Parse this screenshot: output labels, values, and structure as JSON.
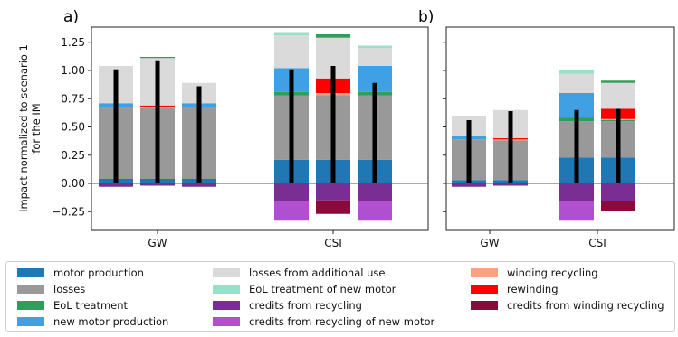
{
  "chart_data": [
    {
      "panel_label": "a)",
      "type": "bar",
      "stacked": true,
      "ylabel": "Impact normalized to scenario 1\nfor the IM",
      "yticks": [
        -0.25,
        0.0,
        0.25,
        0.5,
        0.75,
        1.0,
        1.25
      ],
      "ytick_labels": [
        "−0.25",
        "0.00",
        "0.25",
        "0.50",
        "0.75",
        "1.00",
        "1.25"
      ],
      "ylim": [
        -0.37,
        1.38
      ],
      "categories": [
        "GW",
        "CSI"
      ],
      "groups": [
        {
          "category": "GW",
          "bars": [
            {
              "segments": [
                [
                  "motor_production",
                  0.04
                ],
                [
                  "losses",
                  0.64
                ],
                [
                  "new_motor_production",
                  0.03
                ],
                [
                  "losses_additional_use",
                  0.33
                ]
              ],
              "negative": [
                [
                  "credits_recycling",
                  -0.03
                ]
              ],
              "line": [
                0.0,
                1.01
              ]
            },
            {
              "segments": [
                [
                  "motor_production",
                  0.04
                ],
                [
                  "losses",
                  0.63
                ],
                [
                  "winding_recycling",
                  0.01
                ],
                [
                  "rewinding",
                  0.01
                ],
                [
                  "losses_additional_use",
                  0.42
                ],
                [
                  "eol_treatment",
                  0.01
                ]
              ],
              "negative": [
                [
                  "credits_recycling",
                  -0.02
                ]
              ],
              "line": [
                0.0,
                1.09
              ]
            },
            {
              "segments": [
                [
                  "motor_production",
                  0.04
                ],
                [
                  "losses",
                  0.64
                ],
                [
                  "new_motor_production",
                  0.03
                ],
                [
                  "losses_additional_use",
                  0.18
                ]
              ],
              "negative": [
                [
                  "credits_recycling",
                  -0.03
                ]
              ],
              "line": [
                0.0,
                0.86
              ]
            }
          ]
        },
        {
          "category": "CSI",
          "bars": [
            {
              "segments": [
                [
                  "motor_production",
                  0.21
                ],
                [
                  "losses",
                  0.57
                ],
                [
                  "eol_treatment",
                  0.03
                ],
                [
                  "new_motor_production",
                  0.21
                ],
                [
                  "losses_additional_use",
                  0.29
                ],
                [
                  "eol_treatment_new_motor",
                  0.03
                ]
              ],
              "negative": [
                [
                  "credits_recycling",
                  -0.16
                ],
                [
                  "credits_recycling_new_motor",
                  -0.17
                ]
              ],
              "line": [
                0.0,
                1.01
              ]
            },
            {
              "segments": [
                [
                  "motor_production",
                  0.21
                ],
                [
                  "losses",
                  0.57
                ],
                [
                  "winding_recycling",
                  0.02
                ],
                [
                  "rewinding",
                  0.13
                ],
                [
                  "losses_additional_use",
                  0.36
                ],
                [
                  "eol_treatment",
                  0.03
                ]
              ],
              "negative": [
                [
                  "credits_recycling",
                  -0.15
                ],
                [
                  "credits_winding_recycling",
                  -0.12
                ]
              ],
              "line": [
                0.0,
                1.04
              ]
            },
            {
              "segments": [
                [
                  "motor_production",
                  0.21
                ],
                [
                  "losses",
                  0.57
                ],
                [
                  "eol_treatment",
                  0.03
                ],
                [
                  "new_motor_production",
                  0.23
                ],
                [
                  "losses_additional_use",
                  0.16
                ],
                [
                  "eol_treatment_new_motor",
                  0.02
                ]
              ],
              "negative": [
                [
                  "credits_recycling",
                  -0.16
                ],
                [
                  "credits_recycling_new_motor",
                  -0.17
                ]
              ],
              "line": [
                0.0,
                0.89
              ]
            }
          ]
        }
      ]
    },
    {
      "panel_label": "b)",
      "type": "bar",
      "stacked": true,
      "yticks": [
        -0.25,
        0.0,
        0.25,
        0.5,
        0.75,
        1.0,
        1.25
      ],
      "ylim": [
        -0.37,
        1.38
      ],
      "categories": [
        "GW",
        "CSI"
      ],
      "groups": [
        {
          "category": "GW",
          "bars": [
            {
              "segments": [
                [
                  "motor_production",
                  0.03
                ],
                [
                  "losses",
                  0.36
                ],
                [
                  "new_motor_production",
                  0.03
                ],
                [
                  "losses_additional_use",
                  0.18
                ]
              ],
              "negative": [
                [
                  "credits_recycling",
                  -0.03
                ]
              ],
              "line": [
                0.0,
                0.56
              ]
            },
            {
              "segments": [
                [
                  "motor_production",
                  0.03
                ],
                [
                  "losses",
                  0.35
                ],
                [
                  "winding_recycling",
                  0.01
                ],
                [
                  "rewinding",
                  0.01
                ],
                [
                  "losses_additional_use",
                  0.25
                ]
              ],
              "negative": [
                [
                  "credits_recycling",
                  -0.02
                ]
              ],
              "line": [
                0.0,
                0.64
              ]
            }
          ]
        },
        {
          "category": "CSI",
          "bars": [
            {
              "segments": [
                [
                  "motor_production",
                  0.23
                ],
                [
                  "losses",
                  0.32
                ],
                [
                  "eol_treatment",
                  0.03
                ],
                [
                  "new_motor_production",
                  0.22
                ],
                [
                  "losses_additional_use",
                  0.17
                ],
                [
                  "eol_treatment_new_motor",
                  0.03
                ]
              ],
              "negative": [
                [
                  "credits_recycling",
                  -0.16
                ],
                [
                  "credits_recycling_new_motor",
                  -0.17
                ]
              ],
              "line": [
                0.0,
                0.65
              ]
            },
            {
              "segments": [
                [
                  "motor_production",
                  0.23
                ],
                [
                  "losses",
                  0.32
                ],
                [
                  "eol_treatment",
                  0.01
                ],
                [
                  "winding_recycling",
                  0.01
                ],
                [
                  "rewinding",
                  0.09
                ],
                [
                  "losses_additional_use",
                  0.23
                ],
                [
                  "eol_treatment",
                  0.02
                ]
              ],
              "negative": [
                [
                  "credits_recycling",
                  -0.16
                ],
                [
                  "credits_winding_recycling",
                  -0.08
                ]
              ],
              "line": [
                0.0,
                0.66
              ]
            }
          ]
        }
      ]
    }
  ],
  "colors": {
    "motor_production": "#1f77b4",
    "losses": "#999999",
    "eol_treatment": "#2ca05a",
    "new_motor_production": "#3fa0e4",
    "losses_additional_use": "#dadada",
    "eol_treatment_new_motor": "#99dfca",
    "credits_recycling": "#7a2e94",
    "credits_recycling_new_motor": "#b04fd0",
    "winding_recycling": "#f7a37f",
    "rewinding": "#ff0000",
    "credits_winding_recycling": "#8b0a3c",
    "total_line": "#000000",
    "zero_line": "#555555"
  },
  "legend": {
    "entries": [
      {
        "key": "motor_production",
        "label": "motor production"
      },
      {
        "key": "losses",
        "label": "losses"
      },
      {
        "key": "eol_treatment",
        "label": "EoL treatment"
      },
      {
        "key": "new_motor_production",
        "label": "new motor production"
      },
      {
        "key": "losses_additional_use",
        "label": "losses from additional use"
      },
      {
        "key": "eol_treatment_new_motor",
        "label": "EoL treatment of new motor"
      },
      {
        "key": "credits_recycling",
        "label": "credits from recycling"
      },
      {
        "key": "credits_recycling_new_motor",
        "label": "credits from recycling of new motor"
      },
      {
        "key": "winding_recycling",
        "label": "winding recycling"
      },
      {
        "key": "rewinding",
        "label": "rewinding"
      },
      {
        "key": "credits_winding_recycling",
        "label": "credits from winding recycling"
      }
    ]
  }
}
